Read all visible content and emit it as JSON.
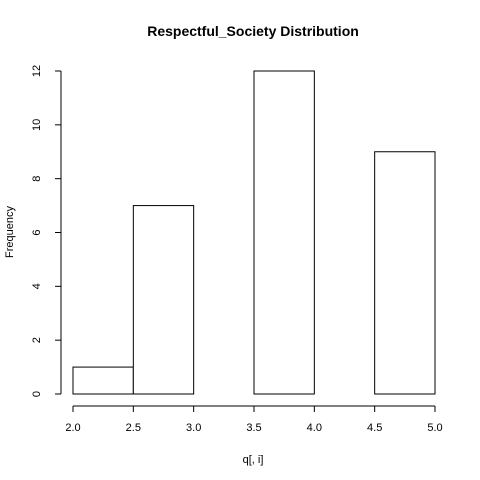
{
  "chart_data": {
    "type": "bar",
    "title": "Respectful_Society Distribution",
    "xlabel": "q[, i]",
    "ylabel": "Frequency",
    "bins": [
      {
        "from": 2.0,
        "to": 2.5,
        "count": 1
      },
      {
        "from": 2.5,
        "to": 3.0,
        "count": 7
      },
      {
        "from": 3.0,
        "to": 3.5,
        "count": 0
      },
      {
        "from": 3.5,
        "to": 4.0,
        "count": 12
      },
      {
        "from": 4.0,
        "to": 4.5,
        "count": 0
      },
      {
        "from": 4.5,
        "to": 5.0,
        "count": 9
      }
    ],
    "xlim": [
      2.0,
      5.0
    ],
    "ylim": [
      0,
      12
    ],
    "x_ticks": [
      "2.0",
      "2.5",
      "3.0",
      "3.5",
      "4.0",
      "4.5",
      "5.0"
    ],
    "y_ticks": [
      "0",
      "2",
      "4",
      "6",
      "8",
      "10",
      "12"
    ],
    "grid": false,
    "bar_fill": "#ffffff",
    "bar_stroke": "#000000"
  }
}
